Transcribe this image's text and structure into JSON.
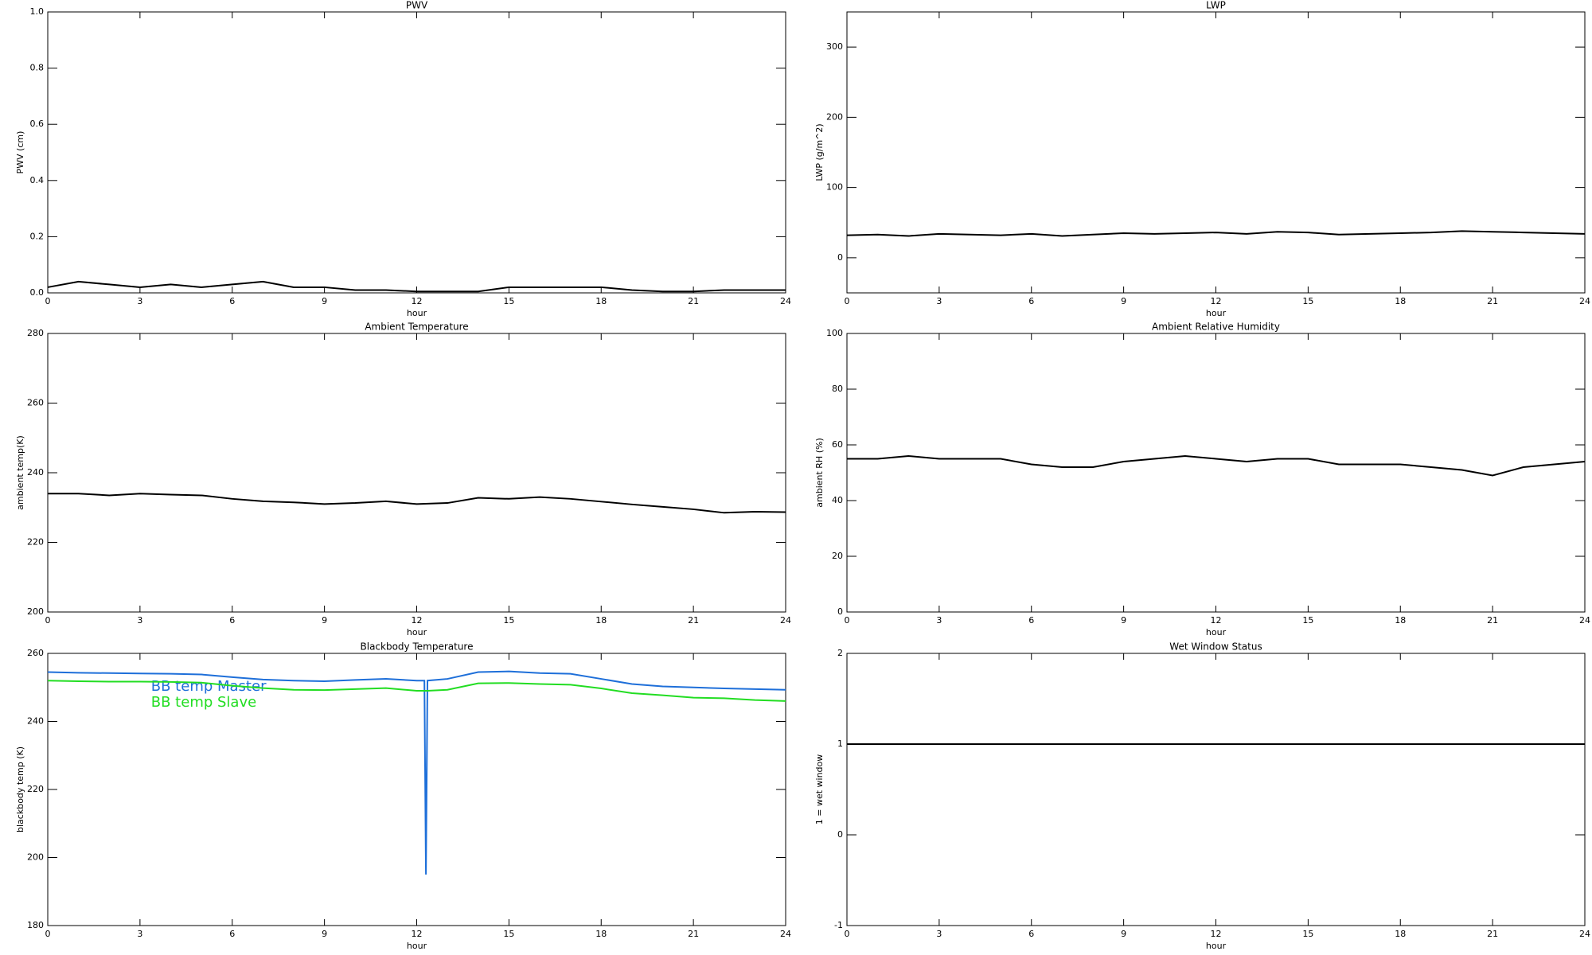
{
  "chart_data": [
    {
      "type": "line",
      "title": "PWV",
      "xlabel": "hour",
      "ylabel": "PWV (cm)",
      "x": [
        0,
        1,
        2,
        3,
        4,
        5,
        6,
        7,
        8,
        9,
        10,
        11,
        12,
        13,
        14,
        15,
        16,
        17,
        18,
        19,
        20,
        21,
        22,
        23,
        24
      ],
      "series": [
        {
          "color": "#000000",
          "values": [
            0.02,
            0.04,
            0.03,
            0.02,
            0.03,
            0.02,
            0.03,
            0.04,
            0.02,
            0.02,
            0.01,
            0.01,
            0.005,
            0.005,
            0.005,
            0.02,
            0.02,
            0.02,
            0.02,
            0.01,
            0.005,
            0.005,
            0.01,
            0.01,
            0.01
          ]
        }
      ],
      "xlim": [
        0,
        24
      ],
      "xticks": [
        0,
        3,
        6,
        9,
        12,
        15,
        18,
        21,
        24
      ],
      "ylim": [
        0,
        1
      ],
      "yticks": [
        {
          "value": 0,
          "label": "0.0"
        },
        0.2,
        0.4,
        0.6,
        0.8,
        {
          "value": 1,
          "label": "1.0"
        }
      ]
    },
    {
      "type": "line",
      "title": "LWP",
      "xlabel": "hour",
      "ylabel": "LWP (g/m^2)",
      "x": [
        0,
        1,
        2,
        3,
        4,
        5,
        6,
        7,
        8,
        9,
        10,
        11,
        12,
        13,
        14,
        15,
        16,
        17,
        18,
        19,
        20,
        21,
        22,
        23,
        24
      ],
      "series": [
        {
          "color": "#000000",
          "values": [
            32,
            33,
            31,
            34,
            33,
            32,
            34,
            31,
            33,
            35,
            34,
            35,
            36,
            34,
            37,
            36,
            33,
            34,
            35,
            36,
            38,
            37,
            36,
            35,
            34
          ]
        }
      ],
      "xlim": [
        0,
        24
      ],
      "xticks": [
        0,
        3,
        6,
        9,
        12,
        15,
        18,
        21,
        24
      ],
      "ylim": [
        -50,
        350
      ],
      "yticks": [
        0,
        100,
        200,
        300
      ]
    },
    {
      "type": "line",
      "title": "Ambient Temperature",
      "xlabel": "hour",
      "ylabel": "ambient temp(K)",
      "x": [
        0,
        1,
        2,
        3,
        4,
        5,
        6,
        7,
        8,
        9,
        10,
        11,
        12,
        13,
        14,
        15,
        16,
        17,
        18,
        19,
        20,
        21,
        22,
        23,
        24
      ],
      "series": [
        {
          "color": "#000000",
          "values": [
            234,
            234,
            233.5,
            234,
            233.7,
            233.5,
            232.5,
            231.8,
            231.5,
            231,
            231.3,
            231.8,
            231,
            231.3,
            232.8,
            232.5,
            233,
            232.5,
            231.7,
            230.9,
            230.2,
            229.5,
            228.5,
            228.8,
            228.7
          ]
        }
      ],
      "xlim": [
        0,
        24
      ],
      "xticks": [
        0,
        3,
        6,
        9,
        12,
        15,
        18,
        21,
        24
      ],
      "ylim": [
        200,
        280
      ],
      "yticks": [
        200,
        220,
        240,
        260,
        280
      ]
    },
    {
      "type": "line",
      "title": "Ambient Relative Humidity",
      "xlabel": "hour",
      "ylabel": "ambient RH (%)",
      "x": [
        0,
        1,
        2,
        3,
        4,
        5,
        6,
        7,
        8,
        9,
        10,
        11,
        12,
        13,
        14,
        15,
        16,
        17,
        18,
        19,
        20,
        21,
        22,
        23,
        24
      ],
      "series": [
        {
          "color": "#000000",
          "values": [
            55,
            55,
            56,
            55,
            55,
            55,
            53,
            52,
            52,
            54,
            55,
            56,
            55,
            54,
            55,
            55,
            53,
            53,
            53,
            52,
            51,
            49,
            52,
            53,
            54
          ]
        }
      ],
      "xlim": [
        0,
        24
      ],
      "xticks": [
        0,
        3,
        6,
        9,
        12,
        15,
        18,
        21,
        24
      ],
      "ylim": [
        0,
        100
      ],
      "yticks": [
        0,
        20,
        40,
        60,
        80,
        100
      ]
    },
    {
      "type": "line",
      "title": "Blackbody Temperature",
      "xlabel": "hour",
      "ylabel": "blackbody temp (K)",
      "x": [
        0,
        1,
        2,
        3,
        4,
        5,
        6,
        7,
        8,
        9,
        10,
        11,
        12,
        12.25,
        12.3,
        12.35,
        13,
        14,
        15,
        16,
        17,
        18,
        19,
        20,
        21,
        22,
        23,
        24
      ],
      "series": [
        {
          "name": "BB temp Master",
          "color": "#1e6fd9",
          "values": [
            254.5,
            254.3,
            254.2,
            254.1,
            254,
            253.8,
            253,
            252.3,
            252,
            251.8,
            252.2,
            252.5,
            252,
            252,
            195,
            252,
            252.5,
            254.5,
            254.7,
            254.2,
            254,
            252.5,
            251,
            250.3,
            250,
            249.7,
            249.5,
            249.3
          ]
        },
        {
          "name": "BB temp Slave",
          "color": "#22dd22",
          "values": [
            252,
            251.8,
            251.7,
            251.7,
            251.6,
            251.4,
            250.5,
            249.8,
            249.3,
            249.2,
            249.5,
            249.8,
            249,
            249,
            249,
            249,
            249.3,
            251.2,
            251.3,
            251,
            250.8,
            249.7,
            248.3,
            247.7,
            247,
            246.8,
            246.3,
            246
          ]
        }
      ],
      "legend": "upper-left",
      "xlim": [
        0,
        24
      ],
      "xticks": [
        0,
        3,
        6,
        9,
        12,
        15,
        18,
        21,
        24
      ],
      "ylim": [
        180,
        260
      ],
      "yticks": [
        180,
        200,
        220,
        240,
        260
      ]
    },
    {
      "type": "line",
      "title": "Wet Window Status",
      "xlabel": "hour",
      "ylabel": "1 = wet window",
      "x": [
        0,
        24
      ],
      "series": [
        {
          "color": "#000000",
          "values": [
            1,
            1
          ]
        }
      ],
      "xlim": [
        0,
        24
      ],
      "xticks": [
        0,
        3,
        6,
        9,
        12,
        15,
        18,
        21,
        24
      ],
      "ylim": [
        -1,
        2
      ],
      "yticks": [
        -1,
        0,
        1,
        2
      ]
    }
  ]
}
